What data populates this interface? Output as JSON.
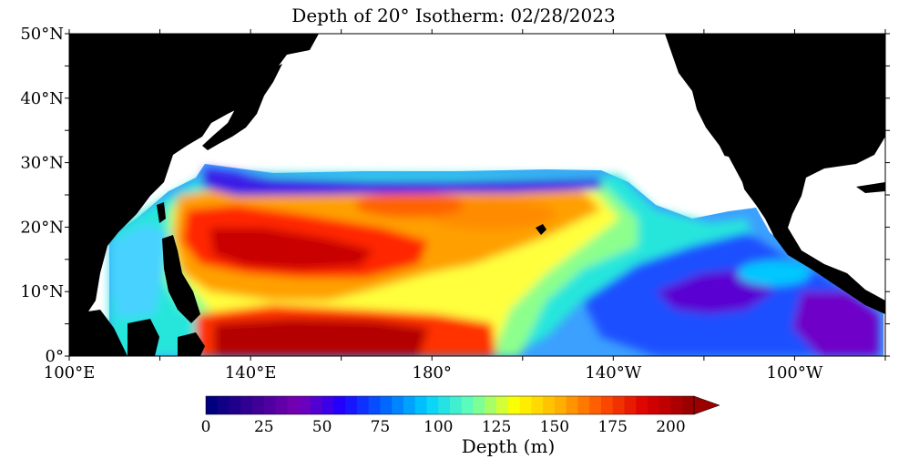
{
  "title": "Depth of 20° Isotherm: 02/28/2023",
  "lat_labels": [
    "50°N",
    "40°N",
    "30°N",
    "20°N",
    "10°N",
    "0°"
  ],
  "lon_labels": [
    "100°E",
    "140°E",
    "180°",
    "140°W",
    "100°W"
  ],
  "colorbar": {
    "title": "Depth (m)",
    "tick_labels": [
      "0",
      "25",
      "50",
      "75",
      "100",
      "125",
      "150",
      "175",
      "200"
    ],
    "min": 0,
    "max": 210,
    "colors": [
      "#00007f",
      "#3c0096",
      "#7800b4",
      "#1e00ff",
      "#0064ff",
      "#00d2ff",
      "#64ffb4",
      "#ffff00",
      "#ffb400",
      "#ff5000",
      "#dc0000",
      "#9b0000"
    ]
  },
  "colors": {
    "land": "#000000",
    "ocean_nodata": "#ffffff",
    "frame": "#000000"
  }
}
